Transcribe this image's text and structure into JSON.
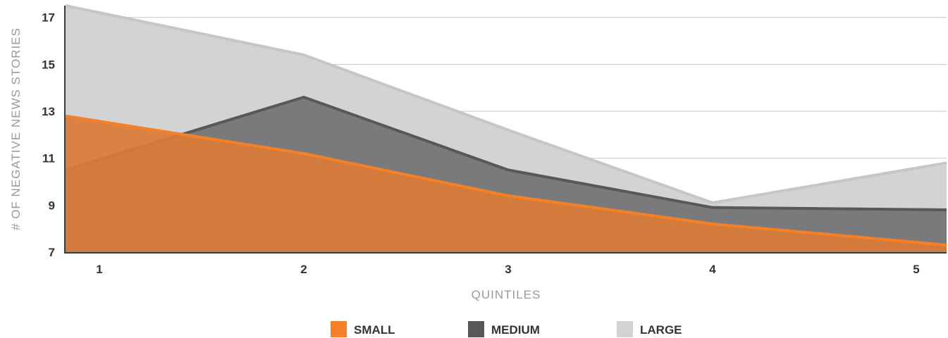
{
  "chart_data": {
    "type": "area",
    "xlabel": "QUINTILES",
    "ylabel": "# OF NEGATIVE NEWS STORIES",
    "x": [
      1,
      2,
      3,
      4,
      5
    ],
    "x_tick_labels": [
      "1",
      "2",
      "3",
      "4",
      "5"
    ],
    "ylim": [
      7,
      17.5
    ],
    "y_ticks": [
      7,
      9,
      11,
      13,
      15,
      17
    ],
    "y_tick_labels": [
      "7",
      "9",
      "11",
      "13",
      "15",
      "17"
    ],
    "grid": true,
    "legend_position": "bottom-center",
    "series": [
      {
        "name": "LARGE",
        "color": "#d3d3d4",
        "line_color": "#c6c6c7",
        "values": [
          17.5,
          15.4,
          12.2,
          9.1,
          10.8
        ]
      },
      {
        "name": "MEDIUM",
        "color": "#7a7a7c",
        "line_color": "#58585a",
        "values": [
          10.5,
          13.6,
          10.5,
          8.9,
          8.8
        ]
      },
      {
        "name": "SMALL",
        "color": "#d97b36",
        "line_color": "#f58025",
        "values": [
          12.8,
          11.2,
          9.4,
          8.2,
          7.3
        ]
      }
    ],
    "legend": [
      {
        "label": "SMALL",
        "color": "#f58025"
      },
      {
        "label": "MEDIUM",
        "color": "#58585a"
      },
      {
        "label": "LARGE",
        "color": "#d3d3d4"
      }
    ]
  }
}
